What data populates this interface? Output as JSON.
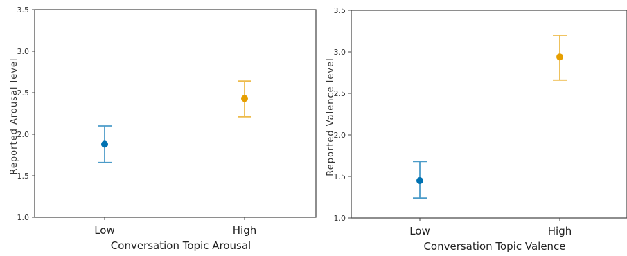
{
  "chart_data": [
    {
      "type": "scatter",
      "title": "",
      "xlabel": "Conversation Topic Arousal",
      "ylabel": "Reported Arousal level",
      "categories": [
        "Low",
        "High"
      ],
      "values": [
        1.88,
        2.43
      ],
      "error_low": [
        1.66,
        2.21
      ],
      "error_high": [
        2.1,
        2.64
      ],
      "colors": [
        "#0072b2",
        "#e69f00"
      ],
      "ylim": [
        1.0,
        3.5
      ],
      "yticks": [
        "1.0",
        "1.5",
        "2.0",
        "2.5",
        "3.0",
        "3.5"
      ],
      "grid": false
    },
    {
      "type": "scatter",
      "title": "",
      "xlabel": "Conversation Topic Valence",
      "ylabel": "Reported Valence level",
      "categories": [
        "Low",
        "High"
      ],
      "values": [
        1.45,
        2.94
      ],
      "error_low": [
        1.24,
        2.66
      ],
      "error_high": [
        1.68,
        3.2
      ],
      "colors": [
        "#0072b2",
        "#e69f00"
      ],
      "ylim": [
        1.0,
        3.5
      ],
      "yticks": [
        "1.0",
        "1.5",
        "2.0",
        "2.5",
        "3.0",
        "3.5"
      ],
      "grid": false
    }
  ]
}
